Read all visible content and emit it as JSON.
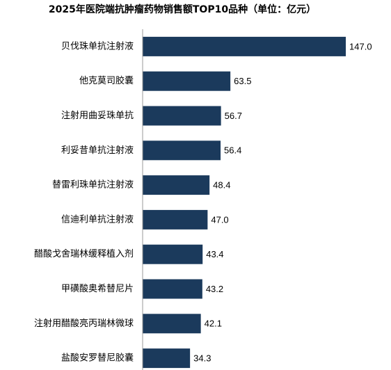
{
  "chart_data": {
    "type": "barh",
    "title": "2025年医院端抗肿瘤药物销售额TOP10品种（单位：亿元）",
    "categories": [
      "贝伐珠单抗注射液",
      "他克莫司胶囊",
      "注射用曲妥珠单抗",
      "利妥昔单抗注射液",
      "替雷利珠单抗注射液",
      "信迪利单抗注射液",
      "醋酸戈舍瑞林缓释植入剂",
      "甲磺酸奥希替尼片",
      "注射用醋酸亮丙瑞林微球",
      "盐酸安罗替尼胶囊"
    ],
    "values": [
      147.0,
      63.5,
      56.7,
      56.4,
      48.4,
      47.0,
      43.4,
      43.2,
      42.1,
      34.3
    ],
    "value_labels": [
      "147.0",
      "63.5",
      "56.7",
      "56.4",
      "48.4",
      "47.0",
      "43.4",
      "43.2",
      "42.1",
      "34.3"
    ],
    "color": "#1b3a5c",
    "xlim": [
      0,
      150
    ]
  }
}
